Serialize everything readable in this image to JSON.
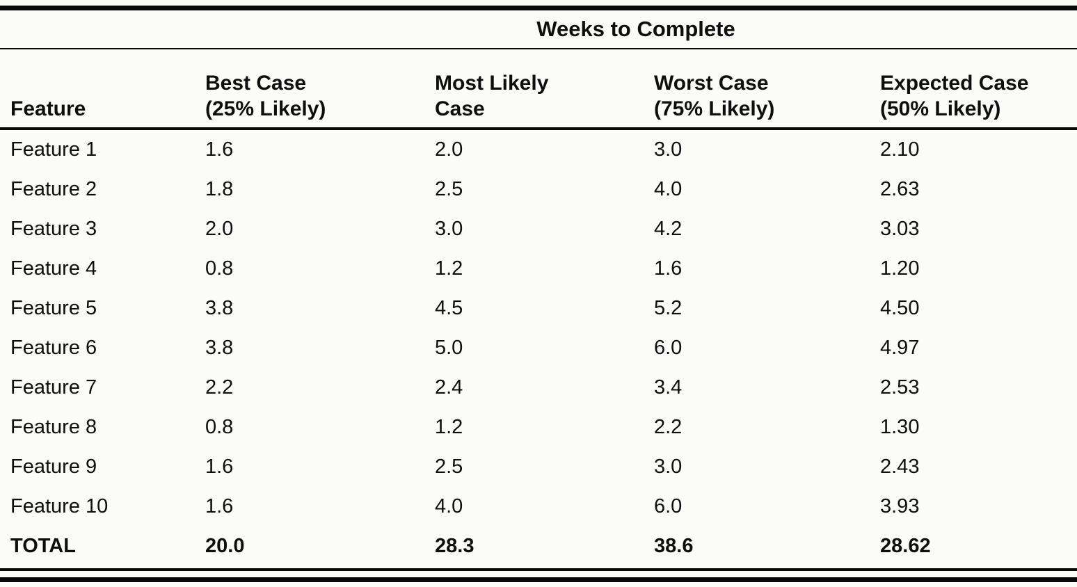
{
  "table": {
    "spanner_header": "Weeks to Complete",
    "columns": [
      "Feature",
      "Best Case\n(25% Likely)",
      "Most Likely\nCase",
      "Worst Case\n(75% Likely)",
      "Expected Case\n(50% Likely)"
    ],
    "rows": [
      [
        "Feature 1",
        "1.6",
        "2.0",
        "3.0",
        "2.10"
      ],
      [
        "Feature 2",
        "1.8",
        "2.5",
        "4.0",
        "2.63"
      ],
      [
        "Feature 3",
        "2.0",
        "3.0",
        "4.2",
        "3.03"
      ],
      [
        "Feature 4",
        "0.8",
        "1.2",
        "1.6",
        "1.20"
      ],
      [
        "Feature 5",
        "3.8",
        "4.5",
        "5.2",
        "4.50"
      ],
      [
        "Feature 6",
        "3.8",
        "5.0",
        "6.0",
        "4.97"
      ],
      [
        "Feature 7",
        "2.2",
        "2.4",
        "3.4",
        "2.53"
      ],
      [
        "Feature 8",
        "0.8",
        "1.2",
        "2.2",
        "1.30"
      ],
      [
        "Feature 9",
        "1.6",
        "2.5",
        "3.0",
        "2.43"
      ],
      [
        "Feature 10",
        "1.6",
        "4.0",
        "6.0",
        "3.93"
      ]
    ],
    "total": [
      "TOTAL",
      "20.0",
      "28.3",
      "38.6",
      "28.62"
    ]
  },
  "chart_data": {
    "type": "table",
    "title": "Weeks to Complete",
    "columns": [
      "Feature",
      "Best Case (25% Likely)",
      "Most Likely Case",
      "Worst Case (75% Likely)",
      "Expected Case (50% Likely)"
    ],
    "rows": [
      [
        "Feature 1",
        1.6,
        2.0,
        3.0,
        2.1
      ],
      [
        "Feature 2",
        1.8,
        2.5,
        4.0,
        2.63
      ],
      [
        "Feature 3",
        2.0,
        3.0,
        4.2,
        3.03
      ],
      [
        "Feature 4",
        0.8,
        1.2,
        1.6,
        1.2
      ],
      [
        "Feature 5",
        3.8,
        4.5,
        5.2,
        4.5
      ],
      [
        "Feature 6",
        3.8,
        5.0,
        6.0,
        4.97
      ],
      [
        "Feature 7",
        2.2,
        2.4,
        3.4,
        2.53
      ],
      [
        "Feature 8",
        0.8,
        1.2,
        2.2,
        1.3
      ],
      [
        "Feature 9",
        1.6,
        2.5,
        3.0,
        2.43
      ],
      [
        "Feature 10",
        1.6,
        4.0,
        6.0,
        3.93
      ]
    ],
    "total_row": [
      "TOTAL",
      20.0,
      28.3,
      38.6,
      28.62
    ]
  }
}
